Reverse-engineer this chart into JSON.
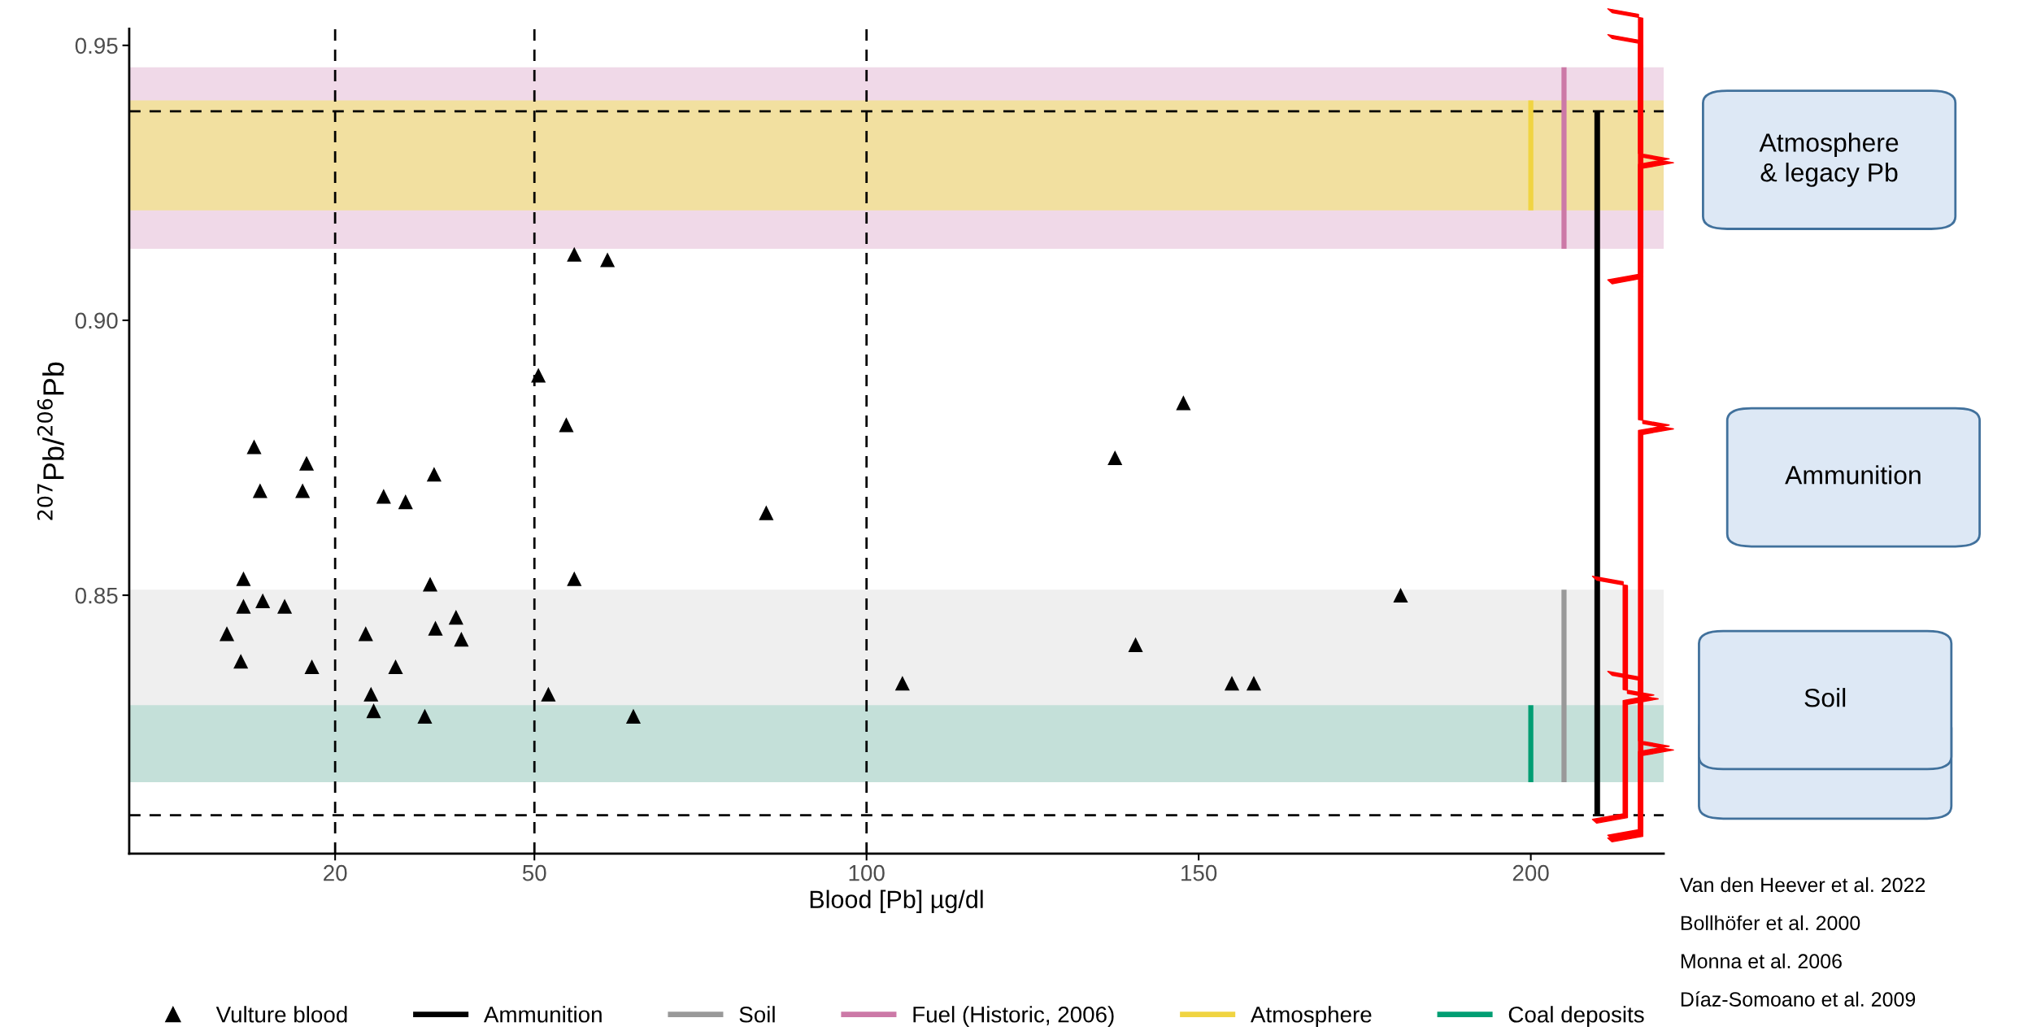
{
  "chart_data": {
    "type": "scatter",
    "xlabel": "Blood [Pb] µg/dl",
    "ylabel": "$^{207}$Pb/$^{206}$Pb",
    "xlim": [
      -11,
      220
    ],
    "ylim": [
      0.803,
      0.953
    ],
    "xticks": [
      20,
      50,
      100,
      150,
      200
    ],
    "yticks": [
      {
        "value": 0.85,
        "label": "0.85"
      },
      {
        "value": 0.9,
        "label": "0.90"
      },
      {
        "value": 0.95,
        "label": "0.95"
      }
    ],
    "grid": false,
    "legend": "bottom",
    "series": [
      {
        "name": "Vulture blood",
        "type": "scatter",
        "marker": "triangle",
        "color": "#000000",
        "x": [
          3.7,
          5.8,
          6.2,
          6.2,
          7.8,
          8.7,
          9.1,
          12.4,
          15.1,
          15.7,
          16.5,
          24.6,
          25.4,
          25.8,
          27.3,
          29.1,
          30.6,
          33.5,
          34.3,
          34.9,
          35.1,
          38.2,
          39.0,
          50.6,
          52.1,
          54.8,
          56.0,
          56.0,
          61.0,
          64.9,
          84.9,
          105.4,
          137.4,
          140.5,
          147.7,
          155.0,
          158.3,
          180.4
        ],
        "values": [
          0.843,
          0.838,
          0.853,
          0.848,
          0.877,
          0.869,
          0.849,
          0.848,
          0.869,
          0.874,
          0.837,
          0.843,
          0.832,
          0.829,
          0.868,
          0.837,
          0.867,
          0.828,
          0.852,
          0.872,
          0.844,
          0.846,
          0.842,
          0.89,
          0.832,
          0.881,
          0.912,
          0.853,
          0.911,
          0.828,
          0.865,
          0.834,
          0.875,
          0.841,
          0.885,
          0.834,
          0.834,
          0.85
        ]
      },
      {
        "name": "Ammunition",
        "type": "line",
        "color": "#000000",
        "x": [
          210,
          210
        ],
        "values": [
          0.81,
          0.938
        ]
      },
      {
        "name": "Soil",
        "type": "line",
        "color": "#999999",
        "x": [
          205,
          205
        ],
        "values": [
          0.816,
          0.851
        ]
      },
      {
        "name": "Fuel (Historic, 2006)",
        "type": "line",
        "color": "#cc79a7",
        "x": [
          205,
          205
        ],
        "values": [
          0.913,
          0.946
        ]
      },
      {
        "name": "Atmosphere",
        "type": "line",
        "color": "#f0d442",
        "x": [
          200,
          200
        ],
        "values": [
          0.92,
          0.94
        ]
      },
      {
        "name": "Coal deposits",
        "type": "line",
        "color": "#009e73",
        "x": [
          200,
          200
        ],
        "values": [
          0.816,
          0.83
        ]
      }
    ],
    "bands": [
      {
        "axis": "y",
        "from": 0.913,
        "to": 0.946,
        "color": "#f0d9e8"
      },
      {
        "axis": "y",
        "from": 0.92,
        "to": 0.94,
        "color": "#f2e0a0"
      },
      {
        "axis": "y",
        "from": 0.816,
        "to": 0.851,
        "color": "#efefef"
      },
      {
        "axis": "y",
        "from": 0.816,
        "to": 0.83,
        "color": "#c4e0d9"
      }
    ],
    "ref_lines": [
      {
        "axis": "y",
        "value": 0.938,
        "line_style": "dashed",
        "color": "#000000"
      },
      {
        "axis": "y",
        "value": 0.81,
        "line_style": "dashed",
        "color": "#000000"
      },
      {
        "axis": "x",
        "value": 20,
        "line_style": "dashed",
        "color": "#000000"
      },
      {
        "axis": "x",
        "value": 50,
        "line_style": "dashed",
        "color": "#000000"
      },
      {
        "axis": "x",
        "value": 100,
        "line_style": "dashed",
        "color": "#000000"
      }
    ],
    "annotations": [
      "Atmosphere\n& legacy Pb",
      "Ammunition",
      "Soil",
      "Van den Heever et al. 2022",
      "Bollhöfer et al. 2000",
      "Monna et al. 2006",
      "Díaz-Somoano et al. 2009"
    ]
  }
}
